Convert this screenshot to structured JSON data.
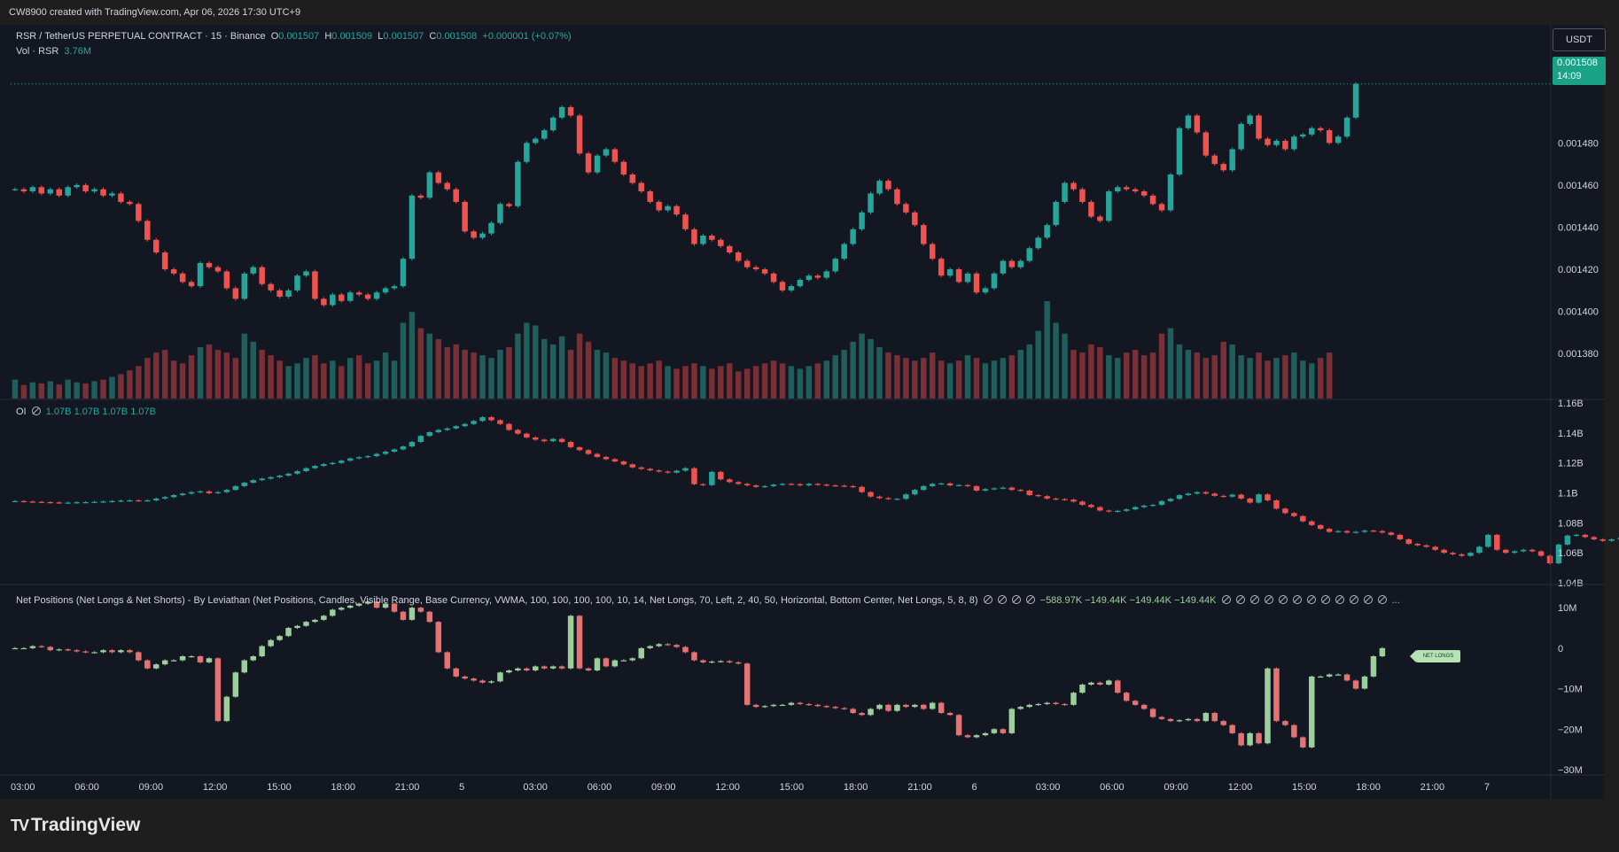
{
  "header": {
    "created_by": "CW8900 created with TradingView.com, Apr 06, 2026 17:30 UTC+9"
  },
  "legend_main": {
    "symbol": "RSR / TetherUS PERPETUAL CONTRACT · 15 · Binance",
    "o_label": "O",
    "o_value": "0.001507",
    "h_label": "H",
    "h_value": "0.001509",
    "l_label": "L",
    "l_value": "0.001507",
    "c_label": "C",
    "c_value": "0.001508",
    "change": "+0.000001 (+0.07%)"
  },
  "legend_vol": {
    "label": "Vol · RSR",
    "value": "3.76M"
  },
  "legend_oi": {
    "label": "OI",
    "v1": "1.07B",
    "v2": "1.07B",
    "v3": "1.07B",
    "v4": "1.07B"
  },
  "legend_np": {
    "label": "Net Positions (Net Longs & Net Shorts) - By Leviathan (Net Positions, Candles, Visible Range, Base Currency, VWMA, 100, 100, 100, 100, 10, 14, Net Longs, 70, Left, 2, 40, 50, Horizontal, Bottom Center, Net Longs, 5, 8, 8)",
    "v1": "−588.97K",
    "v2": "−149.44K",
    "v3": "−149.44K",
    "v4": "−149.44K"
  },
  "currency_button": "USDT",
  "last_price": {
    "price": "0.001508",
    "countdown": "14:09"
  },
  "net_longs_tag": "NET LONGS",
  "branding": {
    "logo_text": "TradingView"
  },
  "colors": {
    "up": "#26a69a",
    "down": "#ef5350",
    "np_up": "#9ccf9c",
    "np_down": "#e57373",
    "bg": "#131722"
  },
  "chart_data": [
    {
      "type": "candlestick",
      "name": "price",
      "ylim": [
        0.00137,
        0.00151
      ],
      "yticks": [
        "0.001380",
        "0.001400",
        "0.001420",
        "0.001440",
        "0.001460",
        "0.001480"
      ],
      "closes": [
        0.001458,
        0.001457,
        0.001459,
        0.001456,
        0.001458,
        0.001455,
        0.001459,
        0.00146,
        0.001457,
        0.001458,
        0.001455,
        0.001456,
        0.001452,
        0.001451,
        0.001443,
        0.001434,
        0.001428,
        0.00142,
        0.001418,
        0.001414,
        0.001412,
        0.001423,
        0.001421,
        0.001419,
        0.001411,
        0.001406,
        0.001418,
        0.001421,
        0.001413,
        0.00141,
        0.001407,
        0.00141,
        0.001417,
        0.001419,
        0.001406,
        0.001403,
        0.001408,
        0.001405,
        0.001409,
        0.001408,
        0.001406,
        0.001409,
        0.001411,
        0.001412,
        0.001425,
        0.001455,
        0.001454,
        0.001466,
        0.001461,
        0.001458,
        0.001452,
        0.001438,
        0.001435,
        0.001437,
        0.001442,
        0.001451,
        0.00145,
        0.001471,
        0.00148,
        0.001482,
        0.001486,
        0.001492,
        0.001497,
        0.001493,
        0.001475,
        0.001466,
        0.001474,
        0.001477,
        0.001471,
        0.001465,
        0.001461,
        0.001457,
        0.001452,
        0.001448,
        0.00145,
        0.001446,
        0.001439,
        0.001432,
        0.001436,
        0.001434,
        0.001431,
        0.001428,
        0.001424,
        0.001421,
        0.00142,
        0.001418,
        0.001414,
        0.00141,
        0.001412,
        0.001415,
        0.001417,
        0.001416,
        0.001419,
        0.001425,
        0.001432,
        0.001439,
        0.001447,
        0.001456,
        0.001462,
        0.001458,
        0.001451,
        0.001447,
        0.001441,
        0.001432,
        0.001425,
        0.001417,
        0.00142,
        0.001414,
        0.001418,
        0.001409,
        0.001411,
        0.001418,
        0.001424,
        0.001421,
        0.001424,
        0.00143,
        0.001435,
        0.001441,
        0.001452,
        0.001461,
        0.001458,
        0.001452,
        0.001445,
        0.001443,
        0.001457,
        0.001459,
        0.001458,
        0.001457,
        0.001455,
        0.001451,
        0.001448,
        0.001465,
        0.001487,
        0.001493,
        0.001485,
        0.001474,
        0.00147,
        0.001467,
        0.001477,
        0.001489,
        0.001493,
        0.001482,
        0.001479,
        0.001481,
        0.001477,
        0.001483,
        0.001484,
        0.001487,
        0.001486,
        0.00148,
        0.001483,
        0.001492,
        0.001508
      ],
      "volumes_M": [
        3.5,
        2.5,
        3.0,
        2.8,
        3.2,
        2.6,
        3.5,
        3.0,
        2.8,
        3.2,
        3.5,
        4.0,
        4.5,
        5.2,
        6.0,
        7.5,
        8.5,
        9.0,
        7.0,
        6.5,
        8.0,
        9.5,
        10.0,
        9.0,
        8.5,
        7.5,
        12.0,
        10.5,
        9.0,
        8.0,
        7.0,
        6.0,
        6.5,
        7.5,
        8.0,
        6.5,
        7.0,
        6.0,
        7.5,
        8.0,
        6.5,
        7.0,
        8.5,
        7.0,
        14.0,
        16.0,
        13.0,
        12.0,
        11.0,
        9.5,
        10.0,
        9.0,
        8.5,
        8.0,
        7.5,
        9.0,
        9.5,
        12.0,
        14.0,
        13.5,
        11.0,
        10.0,
        11.5,
        9.0,
        12.0,
        10.5,
        9.0,
        8.5,
        7.5,
        7.0,
        6.5,
        6.0,
        6.5,
        7.0,
        6.0,
        5.5,
        6.0,
        6.5,
        6.0,
        5.5,
        6.0,
        6.5,
        5.0,
        5.5,
        6.0,
        6.5,
        7.0,
        6.5,
        6.0,
        5.5,
        6.0,
        6.5,
        7.0,
        8.0,
        9.0,
        10.5,
        12.0,
        11.0,
        9.5,
        8.5,
        8.0,
        7.5,
        7.0,
        7.5,
        8.5,
        7.0,
        6.5,
        7.0,
        8.0,
        7.5,
        6.5,
        7.0,
        7.5,
        8.0,
        9.0,
        10.0,
        12.5,
        18.0,
        14.0,
        12.0,
        9.0,
        8.5,
        10.0,
        9.5,
        8.0,
        7.5,
        8.5,
        9.0,
        8.0,
        8.5,
        12.0,
        13.0,
        10.0,
        9.0,
        8.5,
        7.5,
        8.0,
        10.5,
        10.0,
        8.0,
        7.5,
        8.5,
        7.0,
        7.5,
        8.0,
        8.5,
        7.0,
        6.5,
        7.5,
        8.5
      ]
    },
    {
      "type": "candlestick",
      "name": "OI",
      "ylim": [
        1.04,
        1.16
      ],
      "yticks": [
        "1.16B",
        "1.14B",
        "1.12B",
        "1.1B",
        "1.08B",
        "1.06B",
        "1.04B"
      ],
      "closes": [
        1.0945,
        1.0942,
        1.094,
        1.0938,
        1.0936,
        1.0934,
        1.0935,
        1.0937,
        1.0938,
        1.094,
        1.0942,
        1.0945,
        1.0948,
        1.095,
        1.0948,
        1.095,
        1.0962,
        1.0972,
        1.0985,
        1.0995,
        1.1005,
        1.101,
        1.0998,
        1.1005,
        1.102,
        1.1045,
        1.1068,
        1.1085,
        1.1095,
        1.1105,
        1.1115,
        1.1128,
        1.1145,
        1.1165,
        1.118,
        1.1192,
        1.12,
        1.1215,
        1.123,
        1.1238,
        1.1245,
        1.126,
        1.1275,
        1.129,
        1.131,
        1.134,
        1.138,
        1.1405,
        1.142,
        1.143,
        1.1445,
        1.146,
        1.148,
        1.1505,
        1.1485,
        1.146,
        1.142,
        1.1395,
        1.137,
        1.1355,
        1.1345,
        1.136,
        1.134,
        1.1305,
        1.1285,
        1.126,
        1.124,
        1.1225,
        1.121,
        1.119,
        1.117,
        1.116,
        1.115,
        1.1142,
        1.1135,
        1.1148,
        1.1165,
        1.1058,
        1.1052,
        1.114,
        1.109,
        1.1072,
        1.106,
        1.105,
        1.104,
        1.1045,
        1.1055,
        1.106,
        1.1058,
        1.105,
        1.106,
        1.1055,
        1.105,
        1.1048,
        1.1045,
        1.104,
        1.1005,
        1.0975,
        1.0965,
        1.096,
        1.096,
        1.099,
        1.102,
        1.1045,
        1.106,
        1.1063,
        1.105,
        1.1052,
        1.1045,
        1.1015,
        1.1025,
        1.103,
        1.1035,
        1.102,
        1.1015,
        1.0985,
        1.0978,
        1.0962,
        1.0958,
        1.0955,
        1.0942,
        1.092,
        1.0905,
        1.0882,
        1.0875,
        1.088,
        1.089,
        1.0905,
        1.0915,
        1.092,
        1.0945,
        1.096,
        1.0985,
        1.0995,
        1.1005,
        1.0995,
        1.098,
        1.0975,
        1.0988,
        1.0962,
        1.0935,
        1.099,
        1.095,
        1.0895,
        1.0865,
        1.0845,
        1.081,
        1.0785,
        1.076,
        1.074,
        1.0745,
        1.0735,
        1.074,
        1.0748,
        1.0745,
        1.0735,
        1.072,
        1.069,
        1.066,
        1.065,
        1.064,
        1.062,
        1.06,
        1.059,
        1.058,
        1.06,
        1.064,
        1.072,
        1.062,
        1.06,
        1.061,
        1.062,
        1.061,
        1.058,
        1.053,
        1.0655,
        1.0715,
        1.072,
        1.0705,
        1.069,
        1.068,
        1.069,
        1.07,
        1.072,
        1.074,
        1.075
      ]
    },
    {
      "type": "candlestick",
      "name": "Net Positions",
      "ylim": [
        -30,
        12
      ],
      "yticks": [
        "10M",
        "0",
        "−10M",
        "−20M",
        "−30M"
      ],
      "closes": [
        0.0,
        0.0,
        0.5,
        0.3,
        -0.5,
        -0.3,
        -0.5,
        -0.8,
        -1.0,
        -1.0,
        -0.5,
        -1.0,
        -0.5,
        -1.0,
        -3.0,
        -5.0,
        -4.0,
        -3.0,
        -3.0,
        -2.0,
        -2.0,
        -3.5,
        -2.5,
        -18.0,
        -12.0,
        -6.0,
        -3.0,
        -2.0,
        0.5,
        2.0,
        3.0,
        5.0,
        5.5,
        6.5,
        7.0,
        8.0,
        9.5,
        10.0,
        10.5,
        11.0,
        11.5,
        10.0,
        11.0,
        9.0,
        7.0,
        10.0,
        9.0,
        6.5,
        -1.0,
        -5.0,
        -7.0,
        -7.5,
        -8.0,
        -8.5,
        -8.2,
        -6.0,
        -5.5,
        -5.0,
        -5.5,
        -4.5,
        -5.0,
        -4.5,
        -5.0,
        8.0,
        -5.0,
        -5.5,
        -2.5,
        -4.5,
        -3.0,
        -3.0,
        -2.5,
        0.0,
        0.5,
        1.0,
        0.8,
        0.3,
        -1.0,
        -3.0,
        -3.5,
        -3.3,
        -3.2,
        -3.5,
        -3.8,
        -14.0,
        -14.5,
        -14.3,
        -14.0,
        -14.0,
        -13.5,
        -13.8,
        -14.0,
        -14.3,
        -14.5,
        -14.8,
        -15.0,
        -16.0,
        -16.5,
        -15.0,
        -14.0,
        -15.5,
        -14.0,
        -14.5,
        -14.0,
        -15.0,
        -13.5,
        -16.0,
        -16.5,
        -21.5,
        -22.0,
        -21.5,
        -21.0,
        -20.0,
        -21.0,
        -15.0,
        -14.5,
        -14.0,
        -13.8,
        -13.5,
        -13.8,
        -14.0,
        -11.0,
        -9.0,
        -8.5,
        -9.0,
        -8.0,
        -11.0,
        -13.0,
        -14.0,
        -15.0,
        -17.0,
        -17.5,
        -18.0,
        -17.8,
        -17.5,
        -18.0,
        -16.0,
        -18.0,
        -19.0,
        -21.0,
        -24.0,
        -21.0,
        -23.5,
        -5.0,
        -18.0,
        -19.0,
        -22.0,
        -24.5,
        -7.0,
        -7.0,
        -6.5,
        -6.5,
        -8.0,
        -10.0,
        -7.0,
        -2.0,
        0.0
      ]
    }
  ],
  "x_axis": {
    "labels": [
      "03:00",
      "06:00",
      "09:00",
      "12:00",
      "15:00",
      "18:00",
      "21:00",
      "5",
      "03:00",
      "06:00",
      "09:00",
      "12:00",
      "15:00",
      "18:00",
      "21:00",
      "6",
      "03:00",
      "06:00",
      "09:00",
      "12:00",
      "15:00",
      "18:00",
      "21:00",
      "7"
    ]
  }
}
